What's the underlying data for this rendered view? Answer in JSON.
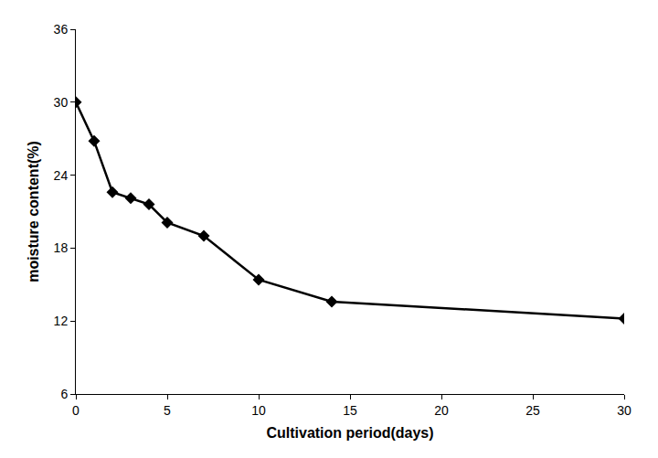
{
  "chart_data": {
    "type": "line",
    "x_label": "Cultivation period(days)",
    "y_label": "moisture content(%)",
    "x": [
      0,
      1,
      2,
      3,
      4,
      5,
      7,
      10,
      14,
      30
    ],
    "values": [
      30,
      26.8,
      22.6,
      22.1,
      21.6,
      20.1,
      19.0,
      15.4,
      13.6,
      12.2
    ],
    "color": "#000000",
    "marker": "diamond",
    "line_style": "solid",
    "xlim": [
      0,
      30
    ],
    "xticks": [
      0,
      5,
      10,
      15,
      20,
      25,
      30
    ],
    "ylim": [
      6,
      36
    ],
    "yticks": [
      6,
      12,
      18,
      24,
      30,
      36
    ],
    "grid": false
  }
}
